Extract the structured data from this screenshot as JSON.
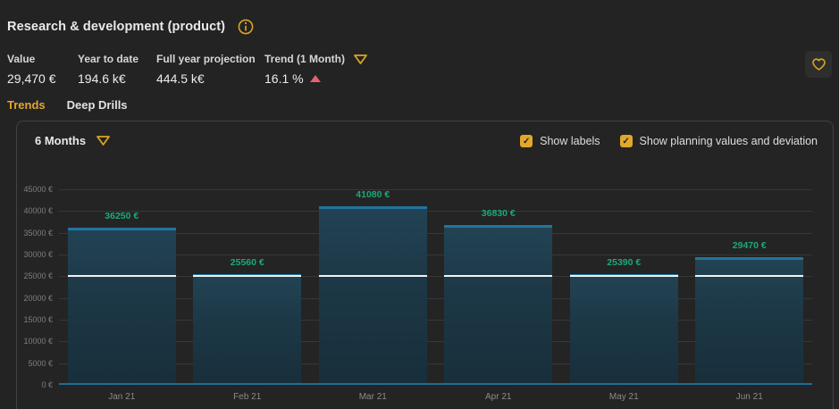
{
  "header": {
    "title": "Research & development (product)",
    "kpis": [
      {
        "label": "Value",
        "value": "29,470 €"
      },
      {
        "label": "Year to date",
        "value": "194.6 k€"
      },
      {
        "label": "Full year projection",
        "value": "444.5 k€"
      },
      {
        "label": "Trend (1 Month)",
        "value": "16.1 %",
        "trend_direction": "up",
        "has_dropdown": true
      }
    ],
    "tabs": [
      {
        "label": "Trends",
        "active": true
      },
      {
        "label": "Deep Drills",
        "active": false
      }
    ]
  },
  "panel": {
    "period_selector": {
      "label": "6 Months"
    },
    "checkboxes": [
      {
        "label": "Show labels",
        "checked": true
      },
      {
        "label": "Show planning values and deviation",
        "checked": true
      }
    ]
  },
  "colors": {
    "accent_gold": "#e2a62e",
    "trend_up_pink": "#e85d72",
    "bar_label_teal": "#1ca87d",
    "bar_fill": "#1d3845",
    "bar_top_cap": "#1f75a0",
    "baseline_blue": "#1d6e96",
    "planning_line": "#f2f2f2",
    "checkbox_fill": "#e3a82b"
  },
  "chart_data": {
    "type": "bar",
    "title": "",
    "categories": [
      "Jan 21",
      "Feb 21",
      "Mar 21",
      "Apr 21",
      "May 21",
      "Jun 21"
    ],
    "values": [
      36250,
      25560,
      41080,
      36830,
      25390,
      29470
    ],
    "bar_labels": [
      "36250 €",
      "25560 €",
      "41080 €",
      "36830 €",
      "25390 €",
      "29470 €"
    ],
    "planning_value": 25000,
    "y_ticks": [
      "45000 €",
      "40000 €",
      "35000 €",
      "30000 €",
      "25000 €",
      "20000 €",
      "15000 €",
      "10000 €",
      "5000 €",
      "0 €"
    ],
    "ylim": [
      0,
      45000
    ],
    "xlabel": "",
    "ylabel": "",
    "grid": true,
    "legend": false
  }
}
